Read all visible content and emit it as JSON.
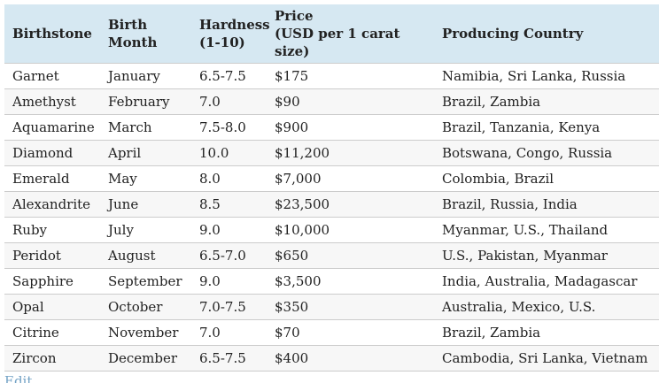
{
  "table": {
    "columns": [
      {
        "label": "Birthstone",
        "sub": ""
      },
      {
        "label": "Birth Month",
        "sub": ""
      },
      {
        "label": "Hardness",
        "sub": "(1-10)"
      },
      {
        "label": "Price",
        "sub": "(USD per 1 carat size)"
      },
      {
        "label": "Producing Country",
        "sub": ""
      }
    ],
    "rows": [
      [
        "Garnet",
        "January",
        "6.5-7.5",
        "$175",
        "Namibia, Sri Lanka, Russia"
      ],
      [
        "Amethyst",
        "February",
        "7.0",
        "$90",
        "Brazil, Zambia"
      ],
      [
        "Aquamarine",
        "March",
        "7.5-8.0",
        "$900",
        "Brazil, Tanzania, Kenya"
      ],
      [
        "Diamond",
        "April",
        "10.0",
        "$11,200",
        "Botswana, Congo, Russia"
      ],
      [
        "Emerald",
        "May",
        "8.0",
        "$7,000",
        "Colombia, Brazil"
      ],
      [
        "Alexandrite",
        "June",
        "8.5",
        "$23,500",
        "Brazil, Russia, India"
      ],
      [
        "Ruby",
        "July",
        "9.0",
        "$10,000",
        "Myanmar, U.S., Thailand"
      ],
      [
        "Peridot",
        "August",
        "6.5-7.0",
        "$650",
        "U.S., Pakistan, Myanmar"
      ],
      [
        "Sapphire",
        "September",
        "9.0",
        "$3,500",
        "India, Australia, Madagascar"
      ],
      [
        "Opal",
        "October",
        "7.0-7.5",
        "$350",
        "Australia, Mexico, U.S."
      ],
      [
        "Citrine",
        "November",
        "7.0",
        "$70",
        "Brazil, Zambia"
      ],
      [
        "Zircon",
        "December",
        "6.5-7.5",
        "$400",
        "Cambodia, Sri Lanka, Vietnam"
      ]
    ]
  },
  "footer": {
    "edit_label": "Edit"
  },
  "colors": {
    "header_bg": "#d6e8f2",
    "row_alt_bg": "#f7f7f7",
    "border": "#cccccc",
    "text": "#222222",
    "edit_link": "#74a3c6"
  }
}
